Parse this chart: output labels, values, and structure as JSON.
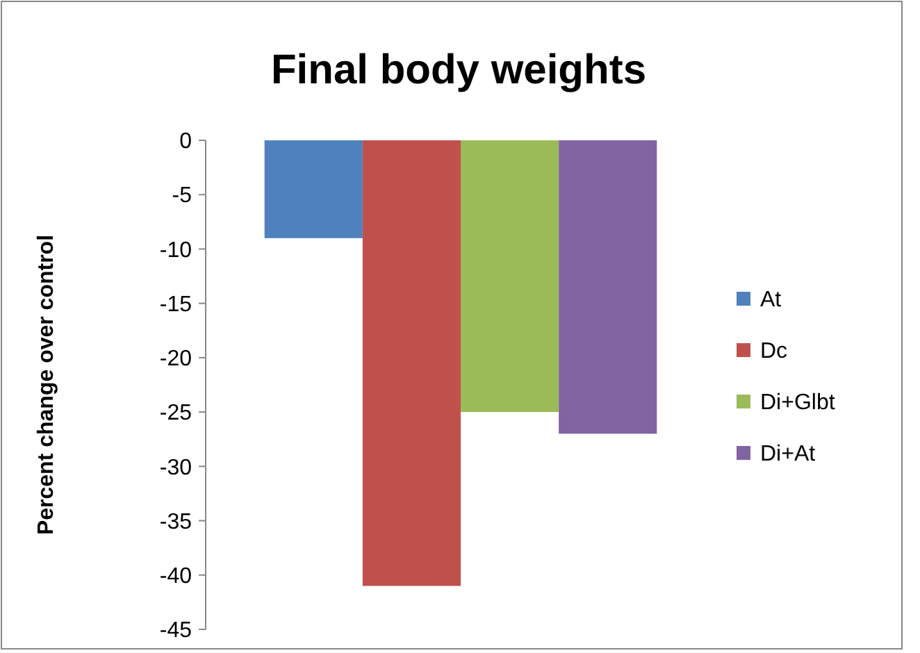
{
  "chart_data": {
    "type": "bar",
    "title": "Final body weights",
    "ylabel": "Percent change over control",
    "categories": [
      null
    ],
    "series": [
      {
        "name": "At",
        "color": "#4f81bd",
        "values": [
          -9
        ]
      },
      {
        "name": "Dc",
        "color": "#c0504d",
        "values": [
          -41
        ]
      },
      {
        "name": "Di+Glbt",
        "color": "#9bbb59",
        "values": [
          -25
        ]
      },
      {
        "name": "Di+At",
        "color": "#8064a2",
        "values": [
          -27
        ]
      }
    ],
    "ylim": [
      -45,
      0
    ],
    "yticks": [
      -45,
      -40,
      -35,
      -30,
      -25,
      -20,
      -15,
      -10,
      -5,
      0
    ],
    "grid": false,
    "legend": "right"
  }
}
